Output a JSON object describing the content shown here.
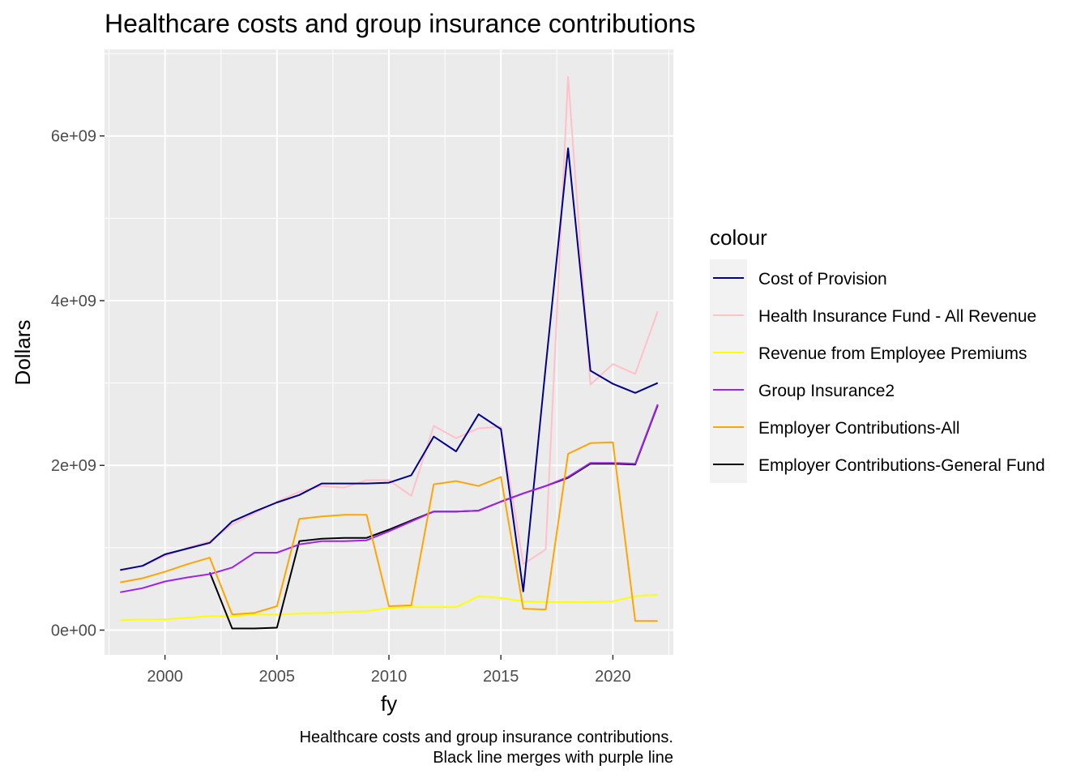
{
  "chart_data": {
    "type": "line",
    "title": "Healthcare costs and group insurance contributions",
    "xlabel": "fy",
    "ylabel": "Dollars",
    "caption_lines": [
      "Healthcare costs and group insurance contributions.",
      "Black line merges with purple line"
    ],
    "xlim": [
      1997.3,
      2022.7
    ],
    "ylim": [
      -300000000,
      7050000000
    ],
    "x_ticks": [
      2000,
      2005,
      2010,
      2015,
      2020
    ],
    "x_tick_labels": [
      "2000",
      "2005",
      "2010",
      "2015",
      "2020"
    ],
    "y_ticks": [
      0,
      2000000000,
      4000000000,
      6000000000
    ],
    "y_tick_labels": [
      "0e+00",
      "2e+09",
      "4e+09",
      "6e+09"
    ],
    "grid": true,
    "legend": {
      "title": "colour",
      "position": "right"
    },
    "x": [
      1998,
      1999,
      2000,
      2001,
      2002,
      2003,
      2004,
      2005,
      2006,
      2007,
      2008,
      2009,
      2010,
      2011,
      2012,
      2013,
      2014,
      2015,
      2016,
      2017,
      2018,
      2019,
      2020,
      2021,
      2022
    ],
    "series": [
      {
        "name": "Health Insurance Fund - All Revenue",
        "color": "#FFC0CB",
        "values": [
          720000000,
          780000000,
          900000000,
          1000000000,
          1080000000,
          1280000000,
          1420000000,
          1560000000,
          1680000000,
          1750000000,
          1730000000,
          1820000000,
          1820000000,
          1630000000,
          2480000000,
          2330000000,
          2450000000,
          2470000000,
          800000000,
          980000000,
          6720000000,
          2980000000,
          3230000000,
          3110000000,
          3870000000
        ]
      },
      {
        "name": "Cost of Provision",
        "color": "#00008B",
        "values": [
          730000000,
          780000000,
          920000000,
          990000000,
          1060000000,
          1320000000,
          1440000000,
          1550000000,
          1640000000,
          1780000000,
          1780000000,
          1780000000,
          1790000000,
          1880000000,
          2350000000,
          2170000000,
          2620000000,
          2440000000,
          470000000,
          3200000000,
          5850000000,
          3150000000,
          2990000000,
          2880000000,
          3000000000
        ]
      },
      {
        "name": "Revenue from Employee Premiums",
        "color": "#FFFF00",
        "values": [
          120000000,
          130000000,
          130000000,
          150000000,
          170000000,
          170000000,
          190000000,
          190000000,
          200000000,
          210000000,
          220000000,
          230000000,
          270000000,
          280000000,
          280000000,
          280000000,
          410000000,
          390000000,
          350000000,
          340000000,
          340000000,
          340000000,
          350000000,
          410000000,
          430000000
        ]
      },
      {
        "name": "Employer Contributions-General Fund",
        "color": "#000000",
        "values": [
          null,
          null,
          null,
          null,
          700000000,
          20000000,
          20000000,
          30000000,
          1080000000,
          1110000000,
          1120000000,
          1120000000,
          1220000000,
          1330000000,
          1440000000,
          1440000000,
          1450000000,
          1560000000,
          1660000000,
          1750000000,
          1850000000,
          2020000000,
          2020000000,
          2010000000,
          2730000000
        ]
      },
      {
        "name": "Group Insurance2",
        "color": "#A020F0",
        "values": [
          460000000,
          510000000,
          590000000,
          640000000,
          680000000,
          760000000,
          940000000,
          940000000,
          1040000000,
          1080000000,
          1080000000,
          1090000000,
          1200000000,
          1320000000,
          1440000000,
          1440000000,
          1450000000,
          1560000000,
          1660000000,
          1750000000,
          1860000000,
          2030000000,
          2030000000,
          2020000000,
          2740000000
        ]
      },
      {
        "name": "Employer Contributions-All",
        "color": "#FFA500",
        "values": [
          580000000,
          630000000,
          710000000,
          800000000,
          880000000,
          190000000,
          210000000,
          290000000,
          1350000000,
          1380000000,
          1400000000,
          1400000000,
          290000000,
          300000000,
          1770000000,
          1810000000,
          1750000000,
          1860000000,
          260000000,
          250000000,
          2140000000,
          2270000000,
          2280000000,
          110000000,
          110000000
        ]
      }
    ],
    "legend_order": [
      "Cost of Provision",
      "Health Insurance Fund - All Revenue",
      "Revenue from Employee Premiums",
      "Group Insurance2",
      "Employer Contributions-All",
      "Employer Contributions-General Fund"
    ]
  }
}
